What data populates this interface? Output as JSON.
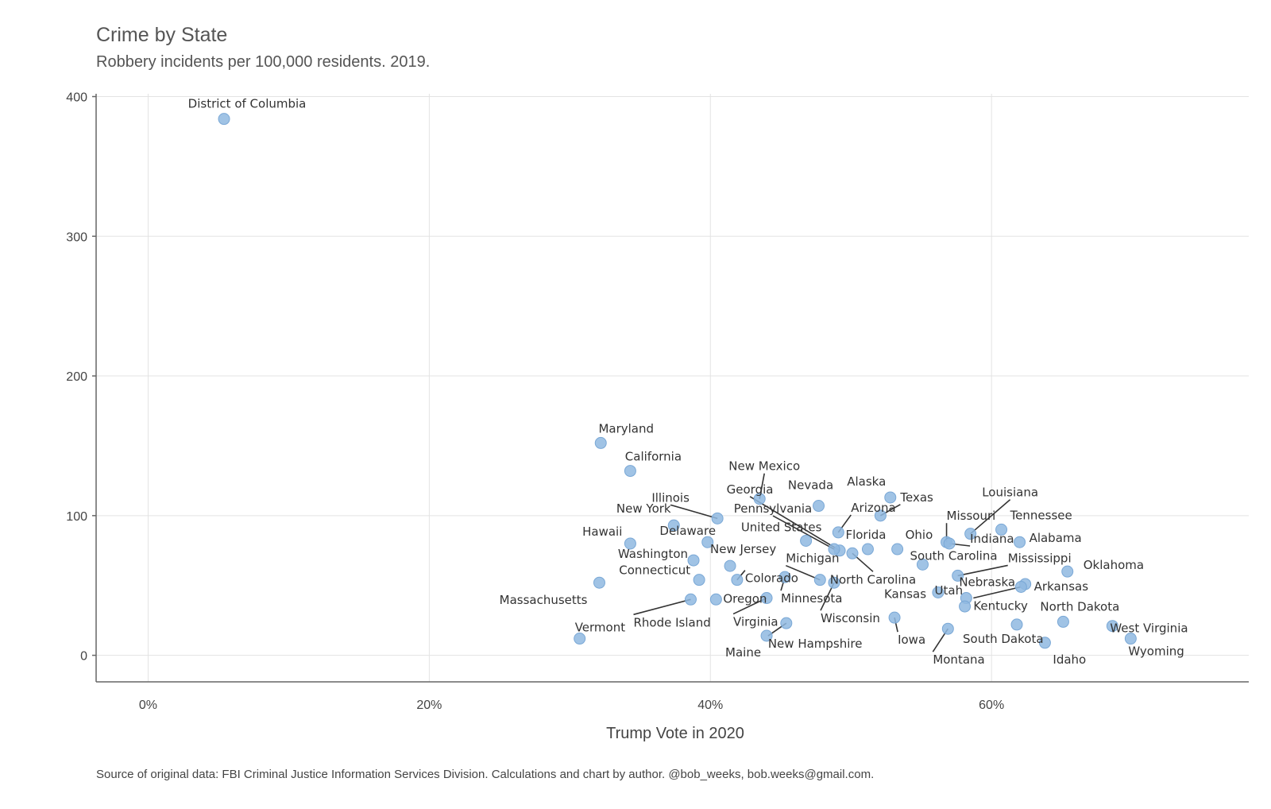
{
  "chart_data": {
    "type": "scatter",
    "title": "Crime by State",
    "subtitle": "Robbery incidents per 100,000 residents. 2019.",
    "xlabel": "Trump Vote in 2020",
    "ylabel": "",
    "xlim": [
      -3.7,
      78.3
    ],
    "ylim": [
      -19,
      402
    ],
    "xticks": [
      0,
      20,
      40,
      60
    ],
    "xtick_labels": [
      "0%",
      "20%",
      "40%",
      "60%"
    ],
    "yticks": [
      0,
      100,
      200,
      300,
      400
    ],
    "ytick_labels": [
      "0",
      "100",
      "200",
      "300",
      "400"
    ],
    "grid": true,
    "point_color": "#8fb8e0",
    "caption": "Source of original data: FBI Criminal Justice Information Services Division. Calculations and chart by author. @bob_weeks, bob.weeks@gmail.com.",
    "points": [
      {
        "label": "District of Columbia",
        "x": 5.4,
        "y": 384
      },
      {
        "label": "Maryland",
        "x": 32.2,
        "y": 152
      },
      {
        "label": "California",
        "x": 34.3,
        "y": 132
      },
      {
        "label": "New York",
        "x": 37.4,
        "y": 93
      },
      {
        "label": "Illinois",
        "x": 40.5,
        "y": 98
      },
      {
        "label": "New Mexico",
        "x": 43.5,
        "y": 112
      },
      {
        "label": "Georgia",
        "x": 49.2,
        "y": 75
      },
      {
        "label": "Pennsylvania",
        "x": 48.8,
        "y": 76
      },
      {
        "label": "Nevada",
        "x": 47.7,
        "y": 107
      },
      {
        "label": "Alaska",
        "x": 52.8,
        "y": 113
      },
      {
        "label": "Texas",
        "x": 52.1,
        "y": 100
      },
      {
        "label": "Arizona",
        "x": 49.1,
        "y": 88
      },
      {
        "label": "United States",
        "x": 46.8,
        "y": 82
      },
      {
        "label": "Florida",
        "x": 51.2,
        "y": 76
      },
      {
        "label": "Ohio",
        "x": 53.3,
        "y": 76
      },
      {
        "label": "North Carolina",
        "x": 50.1,
        "y": 73
      },
      {
        "label": "Louisiana",
        "x": 58.5,
        "y": 87
      },
      {
        "label": "Missouri",
        "x": 56.8,
        "y": 81
      },
      {
        "label": "Indiana",
        "x": 57.0,
        "y": 80
      },
      {
        "label": "Tennessee",
        "x": 60.7,
        "y": 90
      },
      {
        "label": "Alabama",
        "x": 62.0,
        "y": 81
      },
      {
        "label": "Hawaii",
        "x": 34.3,
        "y": 80
      },
      {
        "label": "Delaware",
        "x": 39.8,
        "y": 81
      },
      {
        "label": "Washington",
        "x": 38.8,
        "y": 68
      },
      {
        "label": "New Jersey",
        "x": 41.4,
        "y": 64
      },
      {
        "label": "Michigan",
        "x": 47.8,
        "y": 54
      },
      {
        "label": "South Carolina",
        "x": 55.1,
        "y": 65
      },
      {
        "label": "Mississippi",
        "x": 57.6,
        "y": 57
      },
      {
        "label": "Oklahoma",
        "x": 65.4,
        "y": 60
      },
      {
        "label": "Massachusetts",
        "x": 32.1,
        "y": 52
      },
      {
        "label": "Connecticut",
        "x": 39.2,
        "y": 54
      },
      {
        "label": "Colorado",
        "x": 41.9,
        "y": 54
      },
      {
        "label": "Minnesota",
        "x": 45.3,
        "y": 56
      },
      {
        "label": "Wisconsin",
        "x": 48.8,
        "y": 52
      },
      {
        "label": "Kansas",
        "x": 56.2,
        "y": 45
      },
      {
        "label": "Nebraska",
        "x": 58.2,
        "y": 41
      },
      {
        "label": "Arkansas",
        "x": 62.4,
        "y": 51
      },
      {
        "label": "Kentucky",
        "x": 62.1,
        "y": 49
      },
      {
        "label": "Oregon",
        "x": 40.4,
        "y": 40
      },
      {
        "label": "Rhode Island",
        "x": 38.6,
        "y": 40
      },
      {
        "label": "Virginia",
        "x": 44.0,
        "y": 41
      },
      {
        "label": "Utah",
        "x": 58.1,
        "y": 35
      },
      {
        "label": "Iowa",
        "x": 53.1,
        "y": 27
      },
      {
        "label": "North Dakota",
        "x": 65.1,
        "y": 24
      },
      {
        "label": "South Dakota",
        "x": 61.8,
        "y": 22
      },
      {
        "label": "Montana",
        "x": 56.9,
        "y": 19
      },
      {
        "label": "West Virginia",
        "x": 68.6,
        "y": 21
      },
      {
        "label": "Wyoming",
        "x": 69.9,
        "y": 12
      },
      {
        "label": "Idaho",
        "x": 63.8,
        "y": 9
      },
      {
        "label": "Vermont",
        "x": 30.7,
        "y": 12
      },
      {
        "label": "New Hampshire",
        "x": 45.4,
        "y": 23
      },
      {
        "label": "Maine",
        "x": 44.0,
        "y": 14
      }
    ]
  }
}
